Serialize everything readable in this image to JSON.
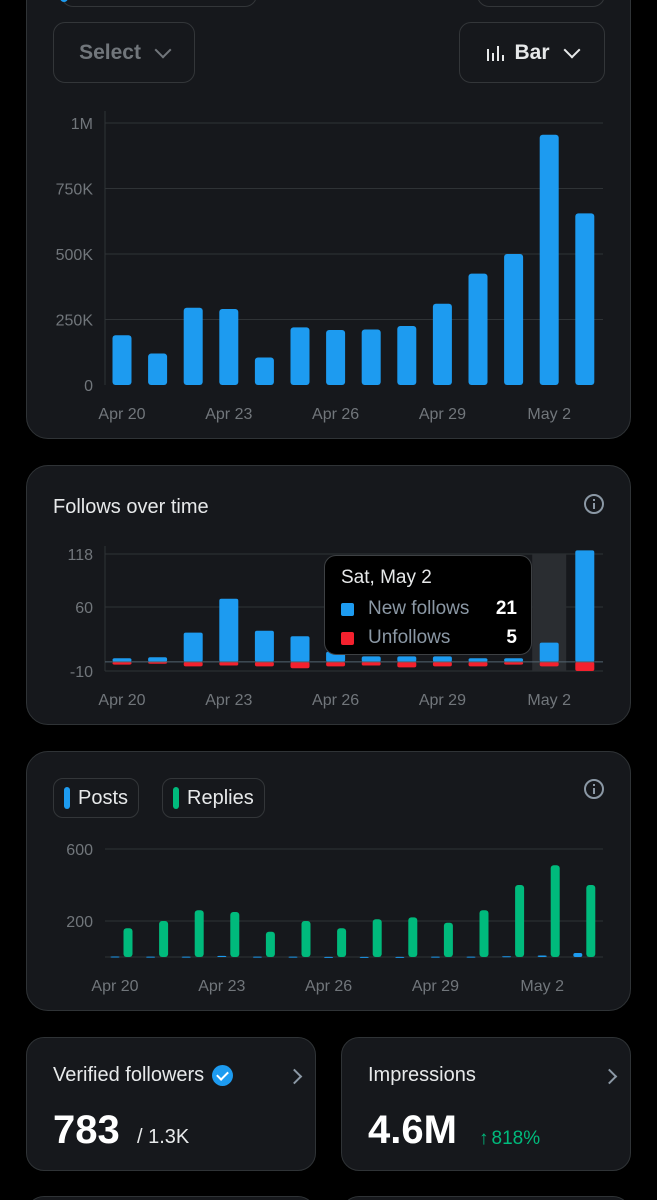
{
  "controls": {
    "select_label": "Select",
    "chart_type_label": "Bar"
  },
  "colors": {
    "blue": "#1d9bf0",
    "red": "#f4212e",
    "green": "#00ba7c"
  },
  "impressions_chart": {
    "chart_data": {
      "type": "bar",
      "categories": [
        "Apr 20",
        "Apr 21",
        "Apr 22",
        "Apr 23",
        "Apr 24",
        "Apr 25",
        "Apr 26",
        "Apr 27",
        "Apr 28",
        "Apr 29",
        "Apr 30",
        "May 1",
        "May 2",
        "May 3"
      ],
      "values": [
        190000,
        120000,
        295000,
        290000,
        105000,
        220000,
        210000,
        212000,
        225000,
        310000,
        425000,
        500000,
        955000,
        655000
      ],
      "y_ticks": [
        "0",
        "250K",
        "500K",
        "750K",
        "1M"
      ],
      "x_ticks": [
        "Apr 20",
        "Apr 23",
        "Apr 26",
        "Apr 29",
        "May 2"
      ],
      "ylim": [
        0,
        1000000
      ]
    }
  },
  "follows_chart": {
    "title": "Follows over time",
    "chart_data": {
      "type": "bar",
      "categories": [
        "Apr 20",
        "Apr 21",
        "Apr 22",
        "Apr 23",
        "Apr 24",
        "Apr 25",
        "Apr 26",
        "Apr 27",
        "Apr 28",
        "Apr 29",
        "Apr 30",
        "May 1",
        "May 2",
        "May 3"
      ],
      "series": [
        {
          "name": "New follows",
          "values": [
            4,
            5,
            32,
            69,
            34,
            28,
            11,
            6,
            6,
            6,
            4,
            4,
            21,
            122
          ]
        },
        {
          "name": "Unfollows",
          "values": [
            3,
            2,
            5,
            4,
            5,
            7,
            5,
            4,
            6,
            5,
            5,
            3,
            5,
            10
          ]
        }
      ],
      "y_ticks": [
        "118",
        "60",
        "-10"
      ],
      "x_ticks": [
        "Apr 20",
        "Apr 23",
        "Apr 26",
        "Apr 29",
        "May 2"
      ],
      "ylim": [
        -10,
        118
      ]
    },
    "tooltip": {
      "date": "Sat, May 2",
      "rows": [
        {
          "label": "New follows",
          "value": "21"
        },
        {
          "label": "Unfollows",
          "value": "5"
        }
      ]
    }
  },
  "posts_chart": {
    "legend": {
      "posts": "Posts",
      "replies": "Replies"
    },
    "chart_data": {
      "type": "bar",
      "categories": [
        "Apr 20",
        "Apr 21",
        "Apr 22",
        "Apr 23",
        "Apr 24",
        "Apr 25",
        "Apr 26",
        "Apr 27",
        "Apr 28",
        "Apr 29",
        "Apr 30",
        "May 1",
        "May 2",
        "May 3"
      ],
      "series": [
        {
          "name": "Posts",
          "values": [
            3,
            2,
            2,
            6,
            2,
            2,
            1,
            1,
            1,
            2,
            2,
            4,
            8,
            22
          ]
        },
        {
          "name": "Replies",
          "values": [
            160,
            200,
            260,
            250,
            140,
            200,
            160,
            210,
            220,
            190,
            260,
            400,
            510,
            400
          ]
        }
      ],
      "y_ticks": [
        "600",
        "200"
      ],
      "x_ticks": [
        "Apr 20",
        "Apr 23",
        "Apr 26",
        "Apr 29",
        "May 2"
      ],
      "ylim": [
        0,
        650
      ]
    }
  },
  "stats": {
    "verified": {
      "title": "Verified followers",
      "value": "783",
      "total": "/ 1.3K"
    },
    "impressions": {
      "title": "Impressions",
      "value": "4.6M",
      "change": "818%"
    }
  }
}
